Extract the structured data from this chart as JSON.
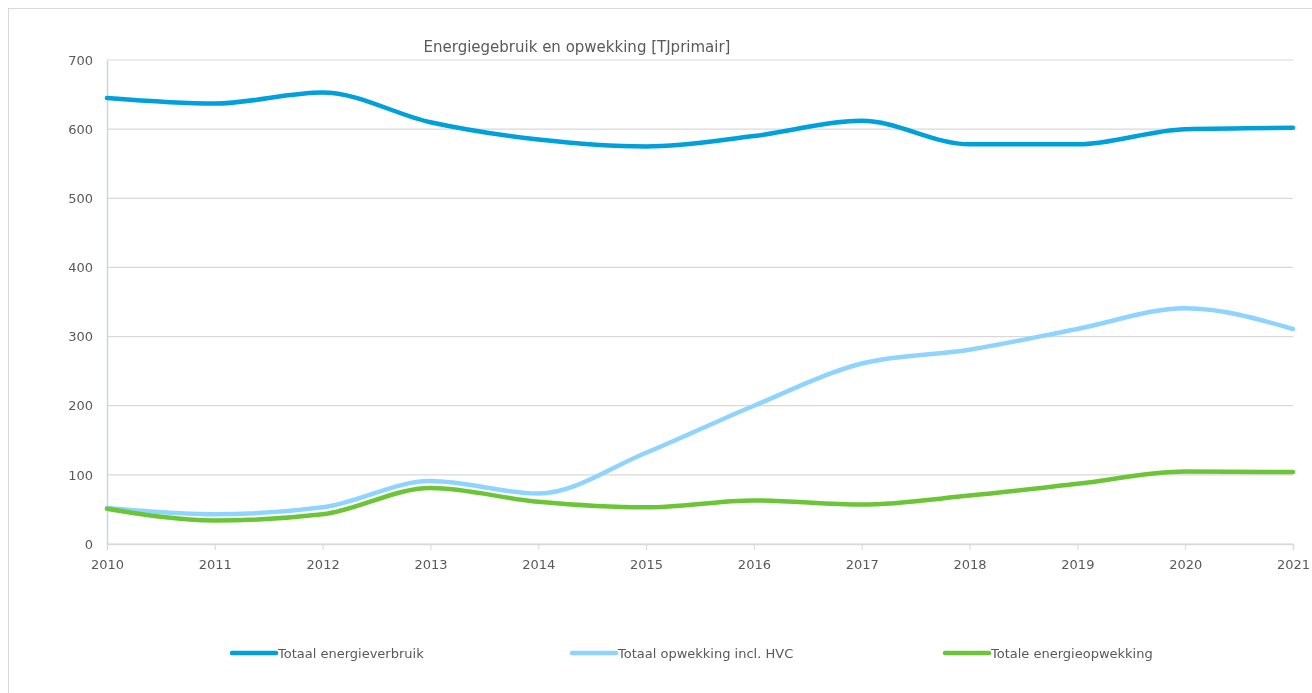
{
  "chart_data": {
    "type": "line",
    "title": "Energiegebruik en opwekking [TJprimair]",
    "categories": [
      "2010",
      "2011",
      "2012",
      "2013",
      "2014",
      "2015",
      "2016",
      "2017",
      "2018",
      "2019",
      "2020",
      "2021"
    ],
    "series": [
      {
        "name": "Totaal energieverbruik",
        "color": "#00a0dc",
        "values": [
          645,
          637,
          653,
          610,
          585,
          575,
          590,
          612,
          578,
          578,
          600,
          602
        ]
      },
      {
        "name": "Totaal opwekking incl. HVC",
        "color": "#8fd3ff",
        "values": [
          52,
          43,
          53,
          91,
          73,
          132,
          200,
          261,
          281,
          311,
          341,
          311
        ]
      },
      {
        "name": "Totale energieopwekking",
        "color": "#6cc537",
        "values": [
          51,
          34,
          43,
          81,
          61,
          53,
          63,
          57,
          70,
          87,
          105,
          104
        ]
      }
    ],
    "ylim": [
      0,
      700
    ],
    "yticks": [
      0,
      100,
      200,
      300,
      400,
      500,
      600,
      700
    ],
    "grid": "y",
    "legend": "bottom",
    "marker": "none",
    "line_style": "solid"
  }
}
